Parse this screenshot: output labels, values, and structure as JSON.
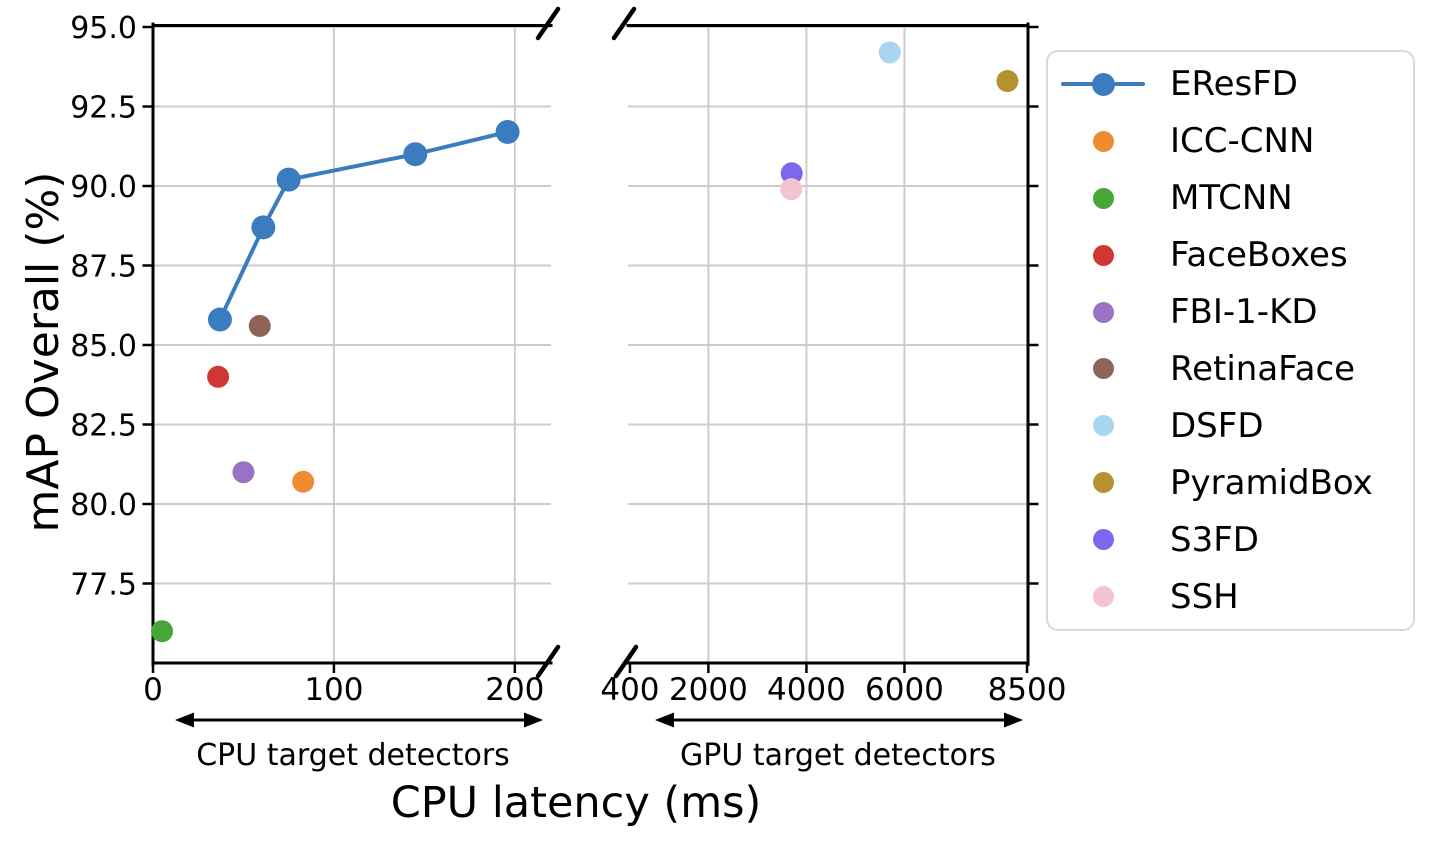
{
  "figure": {
    "background": "#ffffff",
    "grid_color": "#cccccc",
    "axis_color": "#000000"
  },
  "chart_data": {
    "type": "scatter",
    "title": "",
    "xlabel": "CPU latency (ms)",
    "ylabel": "mAP Overall (%)",
    "ylim": [
      75.0,
      95.0
    ],
    "yticks": [
      95.0,
      92.5,
      90.0,
      87.5,
      85.0,
      82.5,
      80.0,
      77.5
    ],
    "ytick_labels": [
      "95.0",
      "92.5",
      "90.0",
      "87.5",
      "85.0",
      "82.5",
      "80.0",
      "77.5"
    ],
    "grid": true,
    "legend_position": "right",
    "broken_x_axis": true,
    "panels": [
      {
        "name": "CPU target detectors",
        "xlim": [
          0,
          220
        ],
        "xticks": [
          0,
          100,
          200
        ],
        "xtick_labels": [
          "0",
          "100",
          "200"
        ],
        "series": [
          {
            "name": "EResFD",
            "type": "line",
            "color": "#3b7cbe",
            "points": [
              [
                37,
                85.8
              ],
              [
                61,
                88.7
              ],
              [
                75,
                90.2
              ],
              [
                145,
                91.0
              ],
              [
                196,
                91.7
              ]
            ]
          },
          {
            "name": "ICC-CNN",
            "type": "scatter",
            "color": "#ef8b30",
            "points": [
              [
                83,
                80.7
              ]
            ]
          },
          {
            "name": "MTCNN",
            "type": "scatter",
            "color": "#48a538",
            "points": [
              [
                5,
                76.0
              ]
            ]
          },
          {
            "name": "FaceBoxes",
            "type": "scatter",
            "color": "#cf3733",
            "points": [
              [
                36,
                84.0
              ]
            ]
          },
          {
            "name": "FBI-1-KD",
            "type": "scatter",
            "color": "#9b72c4",
            "points": [
              [
                50,
                81.0
              ]
            ]
          },
          {
            "name": "RetinaFace",
            "type": "scatter",
            "color": "#8e6458",
            "points": [
              [
                59,
                85.6
              ]
            ]
          }
        ]
      },
      {
        "name": "GPU target detectors",
        "xlim": [
          360,
          8520
        ],
        "xticks": [
          400,
          2000,
          4000,
          6000,
          8500
        ],
        "xtick_labels": [
          "400",
          "2000",
          "4000",
          "6000",
          "8500"
        ],
        "series": [
          {
            "name": "DSFD",
            "type": "scatter",
            "color": "#a8d5f0",
            "points": [
              [
                5700,
                94.2
              ]
            ]
          },
          {
            "name": "PyramidBox",
            "type": "scatter",
            "color": "#b5922d",
            "points": [
              [
                8100,
                93.3
              ]
            ]
          },
          {
            "name": "S3FD",
            "type": "scatter",
            "color": "#7b68ee",
            "points": [
              [
                3700,
                90.4
              ]
            ]
          },
          {
            "name": "SSH",
            "type": "scatter",
            "color": "#f4c3d0",
            "points": [
              [
                3690,
                89.9
              ]
            ]
          }
        ]
      }
    ],
    "legend": [
      {
        "label": "EResFD",
        "color": "#3b7cbe",
        "marker": "line-dot"
      },
      {
        "label": "ICC-CNN",
        "color": "#ef8b30",
        "marker": "dot"
      },
      {
        "label": "MTCNN",
        "color": "#48a538",
        "marker": "dot"
      },
      {
        "label": "FaceBoxes",
        "color": "#cf3733",
        "marker": "dot"
      },
      {
        "label": "FBI-1-KD",
        "color": "#9b72c4",
        "marker": "dot"
      },
      {
        "label": "RetinaFace",
        "color": "#8e6458",
        "marker": "dot"
      },
      {
        "label": "DSFD",
        "color": "#a8d5f0",
        "marker": "dot"
      },
      {
        "label": "PyramidBox",
        "color": "#b5922d",
        "marker": "dot"
      },
      {
        "label": "S3FD",
        "color": "#7b68ee",
        "marker": "dot"
      },
      {
        "label": "SSH",
        "color": "#f4c3d0",
        "marker": "dot"
      }
    ]
  }
}
